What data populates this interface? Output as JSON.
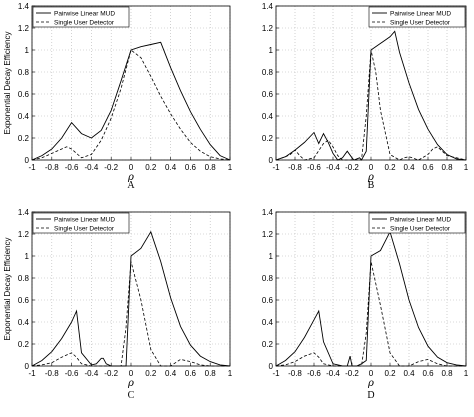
{
  "chart_data": [
    {
      "type": "line",
      "panel": "A",
      "xlabel": "ρ",
      "ylabel": "Exponential Decay Efficiency",
      "xlim": [
        -1,
        1
      ],
      "ylim": [
        0,
        1.4
      ],
      "xticks": [
        "-1",
        "-0.8",
        "-0.6",
        "-0.4",
        "-0.2",
        "0",
        "0.2",
        "0.4",
        "0.6",
        "0.8",
        "1"
      ],
      "yticks": [
        "0",
        "0.2",
        "0.4",
        "0.6",
        "0.8",
        "1",
        "1.2",
        "1.4"
      ],
      "grid": true,
      "legend_position": "top-left",
      "series": [
        {
          "name": "Pairwise Linear MUD",
          "style": "solid",
          "x": [
            -1,
            -0.9,
            -0.8,
            -0.7,
            -0.6,
            -0.55,
            -0.5,
            -0.4,
            -0.3,
            -0.2,
            -0.1,
            0,
            0.1,
            0.2,
            0.3,
            0.4,
            0.5,
            0.6,
            0.7,
            0.8,
            0.9,
            1
          ],
          "y": [
            0,
            0.04,
            0.1,
            0.2,
            0.34,
            0.29,
            0.24,
            0.2,
            0.27,
            0.45,
            0.72,
            1.0,
            1.03,
            1.05,
            1.07,
            0.84,
            0.63,
            0.44,
            0.28,
            0.14,
            0.04,
            0
          ]
        },
        {
          "name": "Single User Detector",
          "style": "dashed",
          "x": [
            -1,
            -0.9,
            -0.8,
            -0.7,
            -0.65,
            -0.6,
            -0.55,
            -0.5,
            -0.4,
            -0.3,
            -0.2,
            -0.1,
            0,
            0.1,
            0.2,
            0.3,
            0.4,
            0.5,
            0.6,
            0.7,
            0.8,
            0.9,
            1
          ],
          "y": [
            0,
            0.02,
            0.06,
            0.1,
            0.12,
            0.1,
            0.06,
            0.02,
            0.05,
            0.18,
            0.38,
            0.65,
            1.0,
            0.93,
            0.76,
            0.58,
            0.42,
            0.28,
            0.16,
            0.08,
            0.03,
            0.01,
            0
          ]
        }
      ]
    },
    {
      "type": "line",
      "panel": "B",
      "xlabel": "ρ",
      "ylabel": "",
      "xlim": [
        -1,
        1
      ],
      "ylim": [
        0,
        1.4
      ],
      "xticks": [
        "-1",
        "-0.8",
        "-0.6",
        "-0.4",
        "-0.2",
        "0",
        "0.2",
        "0.4",
        "0.6",
        "0.8",
        "1"
      ],
      "yticks": [
        "0",
        "0.2",
        "0.4",
        "0.6",
        "0.8",
        "1",
        "1.2",
        "1.4"
      ],
      "grid": true,
      "legend_position": "top-right",
      "series": [
        {
          "name": "Pairwise Linear MUD",
          "style": "solid",
          "x": [
            -1,
            -0.9,
            -0.8,
            -0.7,
            -0.6,
            -0.55,
            -0.5,
            -0.45,
            -0.4,
            -0.35,
            -0.3,
            -0.25,
            -0.2,
            -0.18,
            -0.15,
            -0.12,
            -0.1,
            -0.05,
            0,
            0.1,
            0.2,
            0.25,
            0.3,
            0.4,
            0.5,
            0.6,
            0.7,
            0.8,
            0.9,
            1
          ],
          "y": [
            0,
            0.03,
            0.09,
            0.16,
            0.25,
            0.15,
            0.24,
            0.16,
            0.06,
            0.0,
            0.02,
            0.08,
            0.02,
            0.0,
            0.01,
            0.02,
            0.0,
            0.08,
            1.0,
            1.06,
            1.12,
            1.17,
            0.98,
            0.7,
            0.46,
            0.28,
            0.14,
            0.05,
            0.01,
            0
          ]
        },
        {
          "name": "Single User Detector",
          "style": "dashed",
          "x": [
            -1,
            -0.9,
            -0.85,
            -0.8,
            -0.75,
            -0.7,
            -0.6,
            -0.5,
            -0.45,
            -0.4,
            -0.35,
            -0.3,
            -0.2,
            -0.1,
            -0.05,
            0,
            0.05,
            0.1,
            0.2,
            0.3,
            0.35,
            0.4,
            0.5,
            0.6,
            0.65,
            0.7,
            0.75,
            0.8,
            0.9,
            1
          ],
          "y": [
            0,
            0.03,
            0.05,
            0.09,
            0.04,
            0,
            0.02,
            0.15,
            0.18,
            0.12,
            0.04,
            0,
            0,
            0,
            0.4,
            1.0,
            0.8,
            0.45,
            0.05,
            0,
            0.02,
            0.03,
            0,
            0.05,
            0.1,
            0.12,
            0.08,
            0.04,
            0.02,
            0
          ]
        }
      ]
    },
    {
      "type": "line",
      "panel": "C",
      "xlabel": "ρ",
      "ylabel": "Exponential Decay Efficiency",
      "xlim": [
        -1,
        1
      ],
      "ylim": [
        0,
        1.4
      ],
      "xticks": [
        "-1",
        "-0.8",
        "-0.6",
        "-0.4",
        "-0.2",
        "0",
        "0.2",
        "0.4",
        "0.6",
        "0.8",
        "1"
      ],
      "yticks": [
        "0",
        "0.2",
        "0.4",
        "0.6",
        "0.8",
        "1",
        "1.2",
        "1.4"
      ],
      "grid": true,
      "legend_position": "top-left",
      "series": [
        {
          "name": "Pairwise Linear MUD",
          "style": "solid",
          "x": [
            -1,
            -0.9,
            -0.8,
            -0.7,
            -0.6,
            -0.55,
            -0.5,
            -0.4,
            -0.35,
            -0.3,
            -0.28,
            -0.25,
            -0.2,
            -0.1,
            -0.05,
            0,
            0.1,
            0.2,
            0.3,
            0.4,
            0.5,
            0.6,
            0.7,
            0.8,
            0.9,
            1
          ],
          "y": [
            0,
            0.05,
            0.13,
            0.25,
            0.4,
            0.5,
            0.12,
            0.01,
            0.02,
            0.07,
            0.07,
            0.02,
            0.0,
            0.0,
            0.0,
            1.0,
            1.07,
            1.22,
            0.95,
            0.62,
            0.36,
            0.19,
            0.09,
            0.04,
            0.01,
            0
          ]
        },
        {
          "name": "Single User Detector",
          "style": "dashed",
          "x": [
            -1,
            -0.9,
            -0.8,
            -0.7,
            -0.6,
            -0.55,
            -0.5,
            -0.4,
            -0.3,
            -0.2,
            -0.1,
            -0.05,
            0,
            0.1,
            0.2,
            0.3,
            0.4,
            0.5,
            0.6,
            0.7,
            0.8,
            0.9,
            1
          ],
          "y": [
            0,
            0.01,
            0.03,
            0.08,
            0.12,
            0.08,
            0.02,
            0,
            0,
            0,
            0,
            0.35,
            0.95,
            0.6,
            0.15,
            0.0,
            0.0,
            0.06,
            0.04,
            0.01,
            0.0,
            0.0,
            0
          ]
        }
      ]
    },
    {
      "type": "line",
      "panel": "D",
      "xlabel": "ρ",
      "ylabel": "",
      "xlim": [
        -1,
        1
      ],
      "ylim": [
        0,
        1.4
      ],
      "xticks": [
        "-1",
        "-0.8",
        "-0.6",
        "-0.4",
        "-0.2",
        "0",
        "0.2",
        "0.4",
        "0.6",
        "0.8",
        "1"
      ],
      "yticks": [
        "0",
        "0.2",
        "0.4",
        "0.6",
        "0.8",
        "1",
        "1.2",
        "1.4"
      ],
      "grid": true,
      "legend_position": "top-right",
      "series": [
        {
          "name": "Pairwise Linear MUD",
          "style": "solid",
          "x": [
            -1,
            -0.9,
            -0.8,
            -0.7,
            -0.6,
            -0.55,
            -0.5,
            -0.4,
            -0.3,
            -0.25,
            -0.22,
            -0.2,
            -0.15,
            -0.1,
            -0.05,
            0,
            0.1,
            0.2,
            0.3,
            0.4,
            0.5,
            0.6,
            0.7,
            0.8,
            0.9,
            1
          ],
          "y": [
            0,
            0.05,
            0.13,
            0.26,
            0.42,
            0.5,
            0.22,
            0.02,
            0.0,
            0.0,
            0.09,
            0.0,
            0.0,
            0.02,
            0.05,
            1.0,
            1.05,
            1.22,
            0.93,
            0.6,
            0.35,
            0.18,
            0.08,
            0.03,
            0.01,
            0
          ]
        },
        {
          "name": "Single User Detector",
          "style": "dashed",
          "x": [
            -1,
            -0.9,
            -0.8,
            -0.7,
            -0.6,
            -0.55,
            -0.5,
            -0.4,
            -0.3,
            -0.2,
            -0.1,
            -0.05,
            0,
            0.1,
            0.2,
            0.3,
            0.4,
            0.5,
            0.6,
            0.7,
            0.8,
            0.9,
            1
          ],
          "y": [
            0,
            0.01,
            0.04,
            0.09,
            0.12,
            0.08,
            0.02,
            0,
            0,
            0,
            0,
            0.3,
            0.95,
            0.55,
            0.12,
            0.0,
            0.0,
            0.04,
            0.06,
            0.02,
            0.0,
            0.0,
            0
          ]
        }
      ]
    }
  ]
}
